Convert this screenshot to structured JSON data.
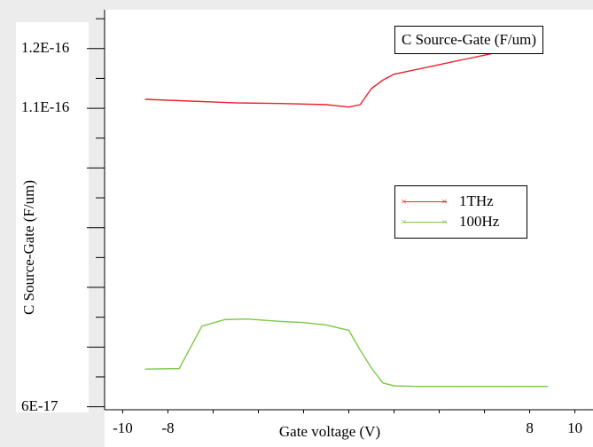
{
  "chart_data": {
    "type": "line",
    "title": "C Source-Gate (F/um)",
    "xlabel": "Gate voltage (V)",
    "ylabel": "C Source-Gate (F/um)",
    "xlim": [
      -10.8,
      10.8
    ],
    "ylim": [
      5.95e-17,
      1.265e-16
    ],
    "x_ticks": [
      -10,
      -8,
      8,
      10
    ],
    "x_tick_labels": [
      "-10",
      "-8",
      "8",
      "10"
    ],
    "y_ticks": [
      6e-17,
      1.1e-16,
      1.2e-16
    ],
    "y_tick_labels": [
      "6E-17",
      "1.1E-16",
      "1.2E-16"
    ],
    "legend": "right-middle",
    "grid": false,
    "series": [
      {
        "name": "1THz",
        "color": "#e8242c",
        "x": [
          -9,
          -7,
          -5,
          -3,
          -1,
          0,
          0.5,
          1,
          1.5,
          2,
          3,
          4,
          5,
          6,
          7,
          8,
          8.5
        ],
        "y": [
          1.115e-16,
          1.112e-16,
          1.109e-16,
          1.108e-16,
          1.106e-16,
          1.102e-16,
          1.106e-16,
          1.133e-16,
          1.147e-16,
          1.157e-16,
          1.165e-16,
          1.173e-16,
          1.181e-16,
          1.189e-16,
          1.197e-16,
          1.205e-16,
          1.213e-16
        ]
      },
      {
        "name": "100Hz",
        "color": "#7cc846",
        "x": [
          -9,
          -7.5,
          -6.5,
          -5.5,
          -4.5,
          -3,
          -2,
          -1,
          0,
          0.5,
          1,
          1.5,
          2,
          3,
          5,
          7,
          8,
          8.8
        ],
        "y": [
          6.63e-17,
          6.64e-17,
          7.35e-17,
          7.46e-17,
          7.47e-17,
          7.43e-17,
          7.41e-17,
          7.37e-17,
          7.28e-17,
          6.95e-17,
          6.65e-17,
          6.4e-17,
          6.35e-17,
          6.34e-17,
          6.34e-17,
          6.34e-17,
          6.34e-17,
          6.34e-17
        ]
      }
    ]
  }
}
